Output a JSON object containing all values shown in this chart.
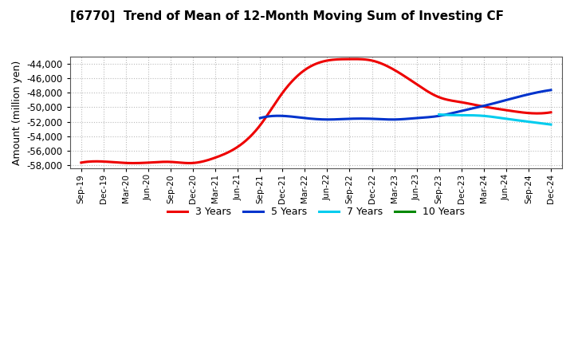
{
  "title": "[6770]  Trend of Mean of 12-Month Moving Sum of Investing CF",
  "ylabel": "Amount (million yen)",
  "background_color": "#ffffff",
  "plot_bg_color": "#ffffff",
  "grid_color": "#bbbbbb",
  "ylim": [
    -58500,
    -43000
  ],
  "yticks": [
    -58000,
    -56000,
    -54000,
    -52000,
    -50000,
    -48000,
    -46000,
    -44000
  ],
  "x_labels": [
    "Sep-19",
    "Dec-19",
    "Mar-20",
    "Jun-20",
    "Sep-20",
    "Dec-20",
    "Mar-21",
    "Jun-21",
    "Sep-21",
    "Dec-21",
    "Mar-22",
    "Jun-22",
    "Sep-22",
    "Dec-22",
    "Mar-23",
    "Jun-23",
    "Sep-23",
    "Dec-23",
    "Mar-24",
    "Jun-24",
    "Sep-24",
    "Dec-24"
  ],
  "series_3y": [
    -57700,
    -57550,
    -57750,
    -57700,
    -57600,
    -57750,
    -57000,
    -55500,
    -52500,
    -48000,
    -44800,
    -43500,
    -43300,
    -43500,
    -44800,
    -46800,
    -48600,
    -49300,
    -49900,
    -50400,
    -50800,
    -50700
  ],
  "series_5y": [
    null,
    null,
    null,
    null,
    null,
    null,
    null,
    null,
    -51500,
    -51200,
    -51500,
    -51700,
    -51600,
    -51600,
    -51700,
    -51500,
    -51200,
    -50500,
    -49800,
    -49000,
    -48200,
    -47600
  ],
  "series_7y": [
    null,
    null,
    null,
    null,
    null,
    null,
    null,
    null,
    null,
    null,
    null,
    null,
    null,
    null,
    null,
    null,
    -51000,
    -51100,
    -51200,
    -51600,
    -52000,
    -52400
  ],
  "series_10y": [
    null,
    null,
    null,
    null,
    null,
    null,
    null,
    null,
    null,
    null,
    null,
    null,
    null,
    null,
    null,
    null,
    null,
    null,
    null,
    null,
    null,
    null
  ],
  "color_3y": "#ee0000",
  "color_5y": "#0033cc",
  "color_7y": "#00ccee",
  "color_10y": "#008800",
  "linewidth": 2.2,
  "legend_labels": [
    "3 Years",
    "5 Years",
    "7 Years",
    "10 Years"
  ]
}
